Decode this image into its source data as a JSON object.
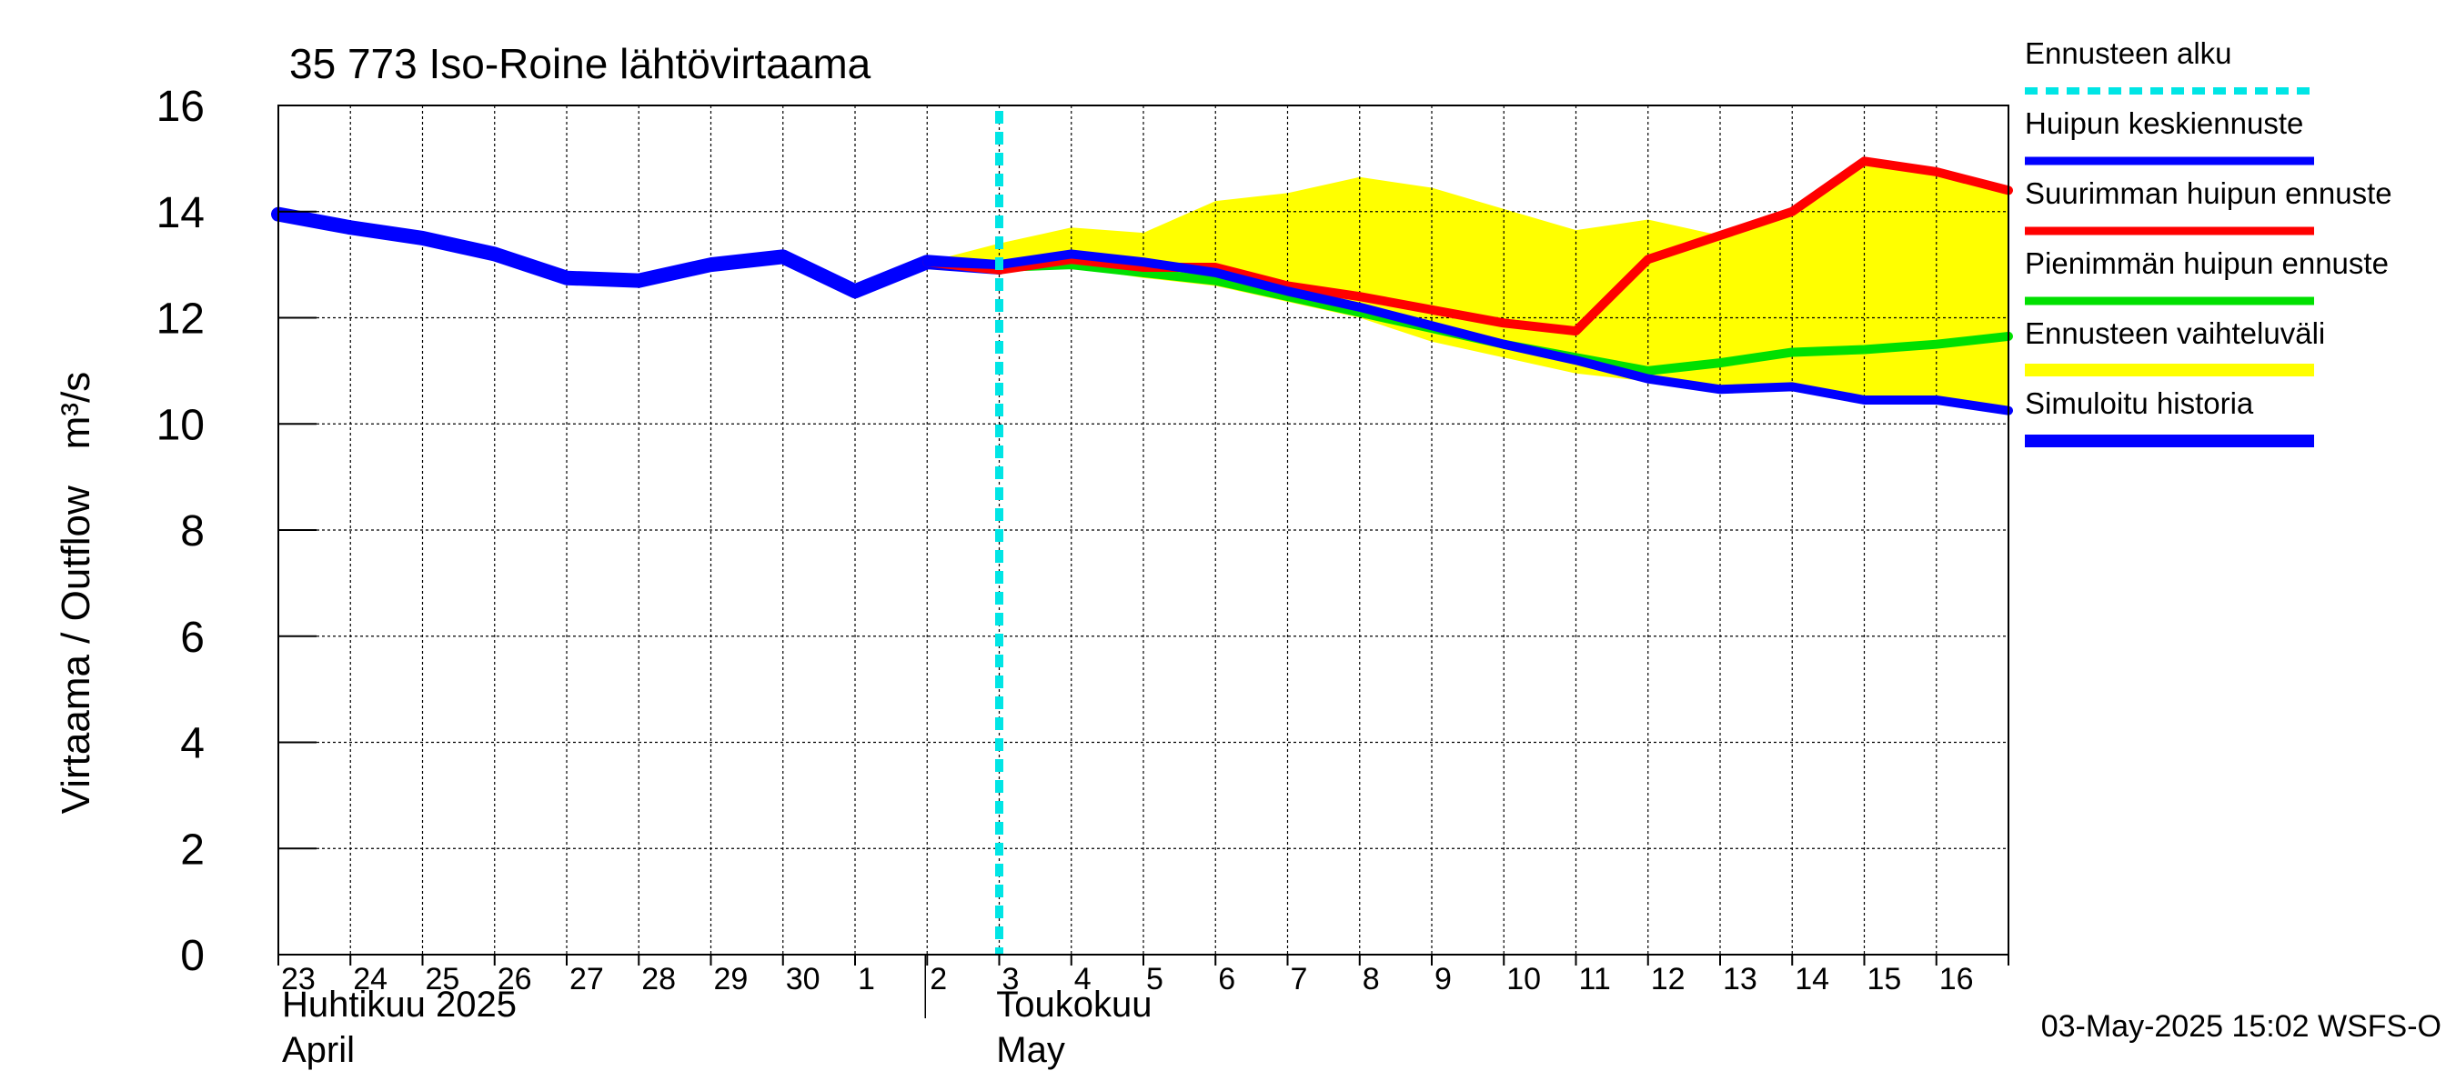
{
  "chart_data": {
    "type": "line",
    "title": "35 773 Iso-Roine lähtövirtaama",
    "ylabel": "Virtaama / Outflow",
    "yunit": "m³/s",
    "ylim": [
      0,
      16
    ],
    "yticks": [
      0,
      2,
      4,
      6,
      8,
      10,
      12,
      14,
      16
    ],
    "x_index_range": [
      0,
      24
    ],
    "day_labels": [
      "23",
      "24",
      "25",
      "26",
      "27",
      "28",
      "29",
      "30",
      "1",
      "2",
      "3",
      "4",
      "5",
      "6",
      "7",
      "8",
      "9",
      "10",
      "11",
      "12",
      "13",
      "14",
      "15",
      "16"
    ],
    "month_labels": [
      {
        "line1": "Huhtikuu  2025",
        "line2": "April",
        "start_index": 0
      },
      {
        "line1": "Toukokuu",
        "line2": "May",
        "start_index": 9
      }
    ],
    "forecast_start_index": 10,
    "timestamp": "03-May-2025 15:02 WSFS-O",
    "colors": {
      "forecast_start": "#00e5e5",
      "mean_peak": "#0000ff",
      "max_peak": "#ff0000",
      "min_peak": "#00e000",
      "range": "#ffff00",
      "history": "#0000ff"
    },
    "series": [
      {
        "key": "range",
        "name": "Ennusteen vaihteluväli",
        "x": [
          9,
          10,
          11,
          12,
          13,
          14,
          15,
          16,
          17,
          18,
          19,
          20,
          21,
          22,
          23,
          24
        ],
        "upper": [
          13.05,
          13.4,
          13.7,
          13.6,
          14.2,
          14.35,
          14.65,
          14.45,
          14.05,
          13.65,
          13.85,
          13.55,
          14.0,
          14.95,
          14.75,
          14.45
        ],
        "lower": [
          13.05,
          12.95,
          12.95,
          12.75,
          12.6,
          12.3,
          12.0,
          11.55,
          11.25,
          10.95,
          10.8,
          10.65,
          10.7,
          10.45,
          10.45,
          10.25
        ]
      },
      {
        "key": "history",
        "name": "Simuloitu historia",
        "x": [
          0,
          1,
          2,
          3,
          4,
          5,
          6,
          7,
          8,
          9,
          10
        ],
        "y": [
          13.95,
          13.7,
          13.5,
          13.2,
          12.75,
          12.7,
          13.0,
          13.15,
          12.5,
          13.05,
          12.95
        ]
      },
      {
        "key": "min_peak",
        "name": "Pienimmän huipun ennuste",
        "x": [
          10,
          11,
          12,
          13,
          14,
          15,
          16,
          17,
          18,
          19,
          20,
          21,
          22,
          23,
          24
        ],
        "y": [
          12.95,
          13.0,
          12.85,
          12.7,
          12.4,
          12.1,
          11.8,
          11.5,
          11.25,
          11.0,
          11.15,
          11.35,
          11.4,
          11.5,
          11.65
        ]
      },
      {
        "key": "max_peak",
        "name": "Suurimman huipun ennuste",
        "x": [
          9,
          10,
          11,
          12,
          13,
          14,
          15,
          16,
          17,
          18,
          19,
          20,
          21,
          22,
          23,
          24
        ],
        "y": [
          13.05,
          12.9,
          13.1,
          12.95,
          12.95,
          12.6,
          12.4,
          12.15,
          11.9,
          11.75,
          13.1,
          13.55,
          14.0,
          14.95,
          14.75,
          14.4
        ]
      },
      {
        "key": "mean_peak",
        "name": "Huipun keskiennuste",
        "x": [
          9,
          10,
          11,
          12,
          13,
          14,
          15,
          16,
          17,
          18,
          19,
          20,
          21,
          22,
          23,
          24
        ],
        "y": [
          13.05,
          13.0,
          13.2,
          13.05,
          12.85,
          12.5,
          12.2,
          11.85,
          11.5,
          11.2,
          10.85,
          10.65,
          10.7,
          10.45,
          10.45,
          10.25
        ]
      }
    ],
    "legend": [
      {
        "key": "forecast_start",
        "label": "Ennusteen alku",
        "style": "dashed"
      },
      {
        "key": "mean_peak",
        "label": "Huipun keskiennuste",
        "style": "solid"
      },
      {
        "key": "max_peak",
        "label": "Suurimman huipun ennuste",
        "style": "solid"
      },
      {
        "key": "min_peak",
        "label": "Pienimmän huipun ennuste",
        "style": "solid"
      },
      {
        "key": "range",
        "label": "Ennusteen vaihteluväli",
        "style": "band"
      },
      {
        "key": "history",
        "label": "Simuloitu historia",
        "style": "solid"
      }
    ],
    "legend_position": "right"
  }
}
